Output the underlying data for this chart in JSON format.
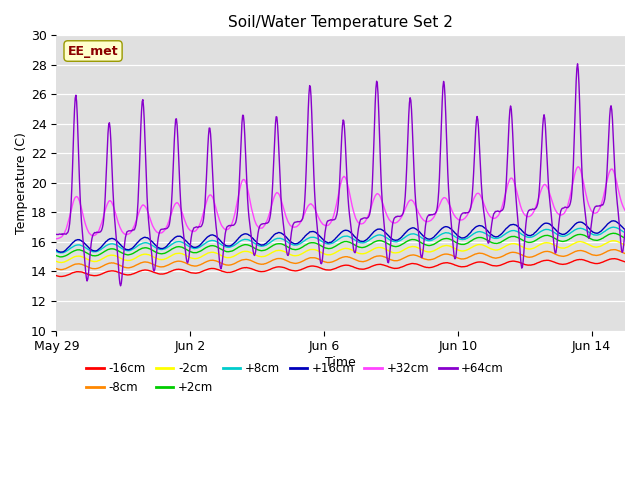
{
  "title": "Soil/Water Temperature Set 2",
  "xlabel": "Time",
  "ylabel": "Temperature (C)",
  "ylim": [
    10,
    30
  ],
  "yticks": [
    10,
    12,
    14,
    16,
    18,
    20,
    22,
    24,
    26,
    28,
    30
  ],
  "num_days": 17,
  "xtick_positions": [
    0,
    4,
    8,
    12,
    16
  ],
  "xtick_labels": [
    "May 29",
    "Jun 2",
    "Jun 6",
    "Jun 10",
    "Jun 14"
  ],
  "series": {
    "-16cm": {
      "color": "#ff0000",
      "base": 13.8,
      "flat_amp": 0.15,
      "trend": 0.055
    },
    "-8cm": {
      "color": "#ff8800",
      "base": 14.3,
      "flat_amp": 0.18,
      "trend": 0.06
    },
    "-2cm": {
      "color": "#ffff00",
      "base": 14.8,
      "flat_amp": 0.2,
      "trend": 0.065
    },
    "+2cm": {
      "color": "#00cc00",
      "base": 15.2,
      "flat_amp": 0.22,
      "trend": 0.07
    },
    "+8cm": {
      "color": "#00cccc",
      "base": 15.5,
      "flat_amp": 0.25,
      "trend": 0.075
    },
    "+16cm": {
      "color": "#0000bb",
      "base": 15.7,
      "flat_amp": 0.4,
      "trend": 0.08
    },
    "+32cm": {
      "color": "#ff44ff",
      "base": 16.2,
      "flat_amp": 1.8,
      "trend": 0.1
    },
    "+64cm": {
      "color": "#8800cc",
      "base": 16.5,
      "flat_amp": 0.0,
      "trend": 0.12
    }
  },
  "annotation_text": "EE_met",
  "plot_bg_color": "#e0e0e0",
  "linewidth": 1.0
}
